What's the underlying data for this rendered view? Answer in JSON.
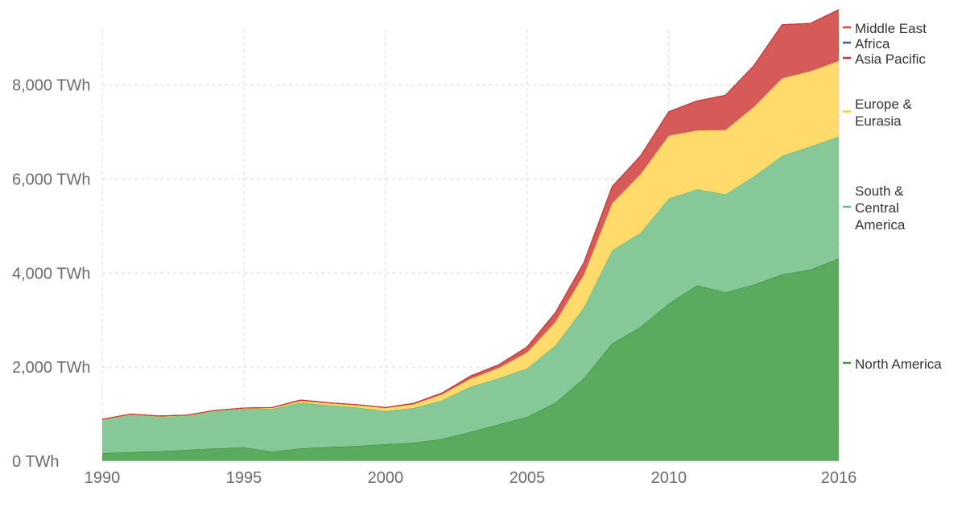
{
  "chart_data": {
    "type": "area",
    "stacked": true,
    "x": [
      1990,
      1991,
      1992,
      1993,
      1994,
      1995,
      1996,
      1997,
      1998,
      1999,
      2000,
      2001,
      2002,
      2003,
      2004,
      2005,
      2006,
      2007,
      2008,
      2009,
      2010,
      2011,
      2012,
      2013,
      2014,
      2015,
      2016
    ],
    "ylim": [
      0,
      9600
    ],
    "y_ticks": [
      0,
      2000,
      4000,
      6000,
      8000
    ],
    "y_tick_labels": [
      "0 TWh",
      "2,000 TWh",
      "4,000 TWh",
      "6,000 TWh",
      "8,000 TWh"
    ],
    "x_ticks": [
      1990,
      1995,
      2000,
      2005,
      2010,
      2016
    ],
    "x_tick_labels": [
      "1990",
      "1995",
      "2000",
      "2005",
      "2010",
      "2016"
    ],
    "grid": true,
    "legend_placement": "right",
    "series": [
      {
        "name": "North America",
        "color": "#5aab5e",
        "line_color": "#2e8b3a",
        "values": [
          170,
          190,
          210,
          240,
          270,
          290,
          200,
          270,
          300,
          320,
          360,
          390,
          470,
          620,
          780,
          940,
          1240,
          1760,
          2500,
          2850,
          3350,
          3740,
          3590,
          3750,
          3970,
          4070,
          4310
        ]
      },
      {
        "name": "South & Central America",
        "color": "#86c897",
        "line_color": "#5fb184",
        "values": [
          710,
          800,
          740,
          730,
          800,
          820,
          910,
          970,
          890,
          820,
          700,
          740,
          820,
          960,
          980,
          1030,
          1220,
          1500,
          1980,
          2000,
          2230,
          2040,
          2080,
          2300,
          2520,
          2620,
          2590
        ]
      },
      {
        "name": "Europe & Eurasia",
        "color": "#fedb6b",
        "line_color": "#f1c644",
        "values": [
          0,
          0,
          0,
          0,
          0,
          10,
          20,
          40,
          40,
          50,
          70,
          80,
          130,
          170,
          220,
          340,
          500,
          700,
          1000,
          1250,
          1340,
          1250,
          1370,
          1480,
          1650,
          1600,
          1610
        ]
      },
      {
        "name": "Asia Pacific",
        "color": "#d55a58",
        "line_color": "#a33e3e",
        "values": [
          10,
          10,
          10,
          10,
          10,
          10,
          10,
          20,
          10,
          10,
          10,
          20,
          30,
          60,
          70,
          120,
          200,
          260,
          360,
          390,
          510,
          630,
          740,
          880,
          1140,
          1020,
          1090
        ]
      },
      {
        "name": "Africa",
        "color": "#3a5fa4",
        "line_color": "#2a4d8f",
        "values": [
          0,
          0,
          0,
          0,
          0,
          0,
          0,
          0,
          0,
          0,
          0,
          0,
          0,
          0,
          0,
          0,
          0,
          0,
          0,
          0,
          0,
          0,
          0,
          0,
          0,
          0,
          0
        ]
      },
      {
        "name": "Middle East",
        "color": "#e0423a",
        "line_color": "#d9352b",
        "values": [
          0,
          0,
          0,
          0,
          0,
          0,
          0,
          0,
          0,
          0,
          0,
          0,
          0,
          0,
          0,
          0,
          0,
          0,
          0,
          0,
          0,
          0,
          0,
          0,
          0,
          0,
          0
        ]
      }
    ],
    "legend": [
      {
        "label": "Middle East",
        "color": "#e0423a",
        "lines": [
          "Middle East"
        ]
      },
      {
        "label": "Africa",
        "color": "#3a5fa4",
        "lines": [
          "Africa"
        ]
      },
      {
        "label": "Asia Pacific",
        "color": "#c0353a",
        "lines": [
          "Asia Pacific"
        ]
      },
      {
        "label": "Europe & Eurasia",
        "color": "#f5cd3e",
        "lines": [
          "Europe &",
          "Eurasia"
        ]
      },
      {
        "label": "South & Central America",
        "color": "#6dbb8a",
        "lines": [
          "South &",
          "Central",
          "America"
        ]
      },
      {
        "label": "North America",
        "color": "#3e9a4a",
        "lines": [
          "North America"
        ]
      }
    ]
  }
}
